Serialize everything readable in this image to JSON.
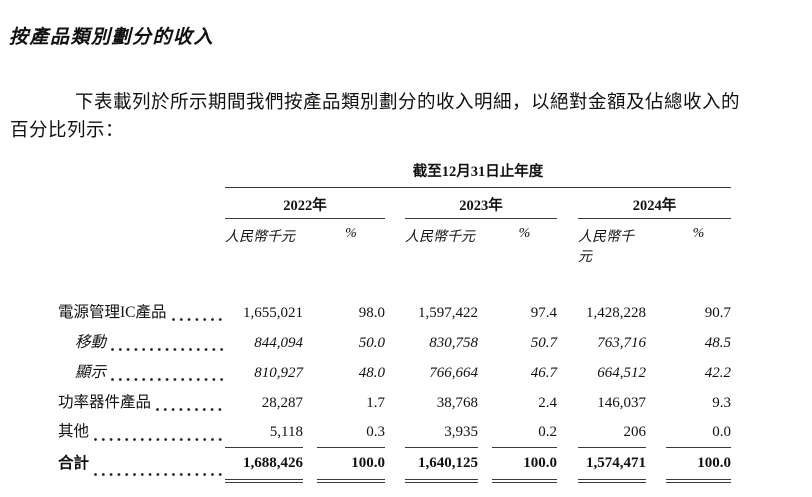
{
  "title": "按產品類別劃分的收入",
  "intro": {
    "line1": "下表載列於所示期間我們按產品類別劃分的收入明細，以絕對金額及佔總收入的",
    "line2": "百分比列示："
  },
  "table": {
    "span_header": "截至12月31日止年度",
    "years": [
      "2022年",
      "2023年",
      "2024年"
    ],
    "col_headers": {
      "amount": "人民幣千元",
      "percent": "%"
    },
    "rows": [
      {
        "label": "電源管理IC產品",
        "style": "normal",
        "underline": false,
        "values": [
          "1,655,021",
          "98.0",
          "1,597,422",
          "97.4",
          "1,428,228",
          "90.7"
        ]
      },
      {
        "label": "移動",
        "style": "italic",
        "underline": false,
        "values": [
          "844,094",
          "50.0",
          "830,758",
          "50.7",
          "763,716",
          "48.5"
        ]
      },
      {
        "label": "顯示",
        "style": "italic",
        "underline": false,
        "values": [
          "810,927",
          "48.0",
          "766,664",
          "46.7",
          "664,512",
          "42.2"
        ]
      },
      {
        "label": "功率器件產品",
        "style": "normal",
        "underline": false,
        "values": [
          "28,287",
          "1.7",
          "38,768",
          "2.4",
          "146,037",
          "9.3"
        ]
      },
      {
        "label": "其他",
        "style": "normal",
        "underline": true,
        "values": [
          "5,118",
          "0.3",
          "3,935",
          "0.2",
          "206",
          "0.0"
        ]
      },
      {
        "label": "合計",
        "style": "total",
        "underline": false,
        "values": [
          "1,688,426",
          "100.0",
          "1,640,125",
          "100.0",
          "1,574,471",
          "100.0"
        ]
      }
    ]
  },
  "colors": {
    "text": "#111111",
    "rule": "#3a3a3a",
    "background": "#ffffff"
  }
}
